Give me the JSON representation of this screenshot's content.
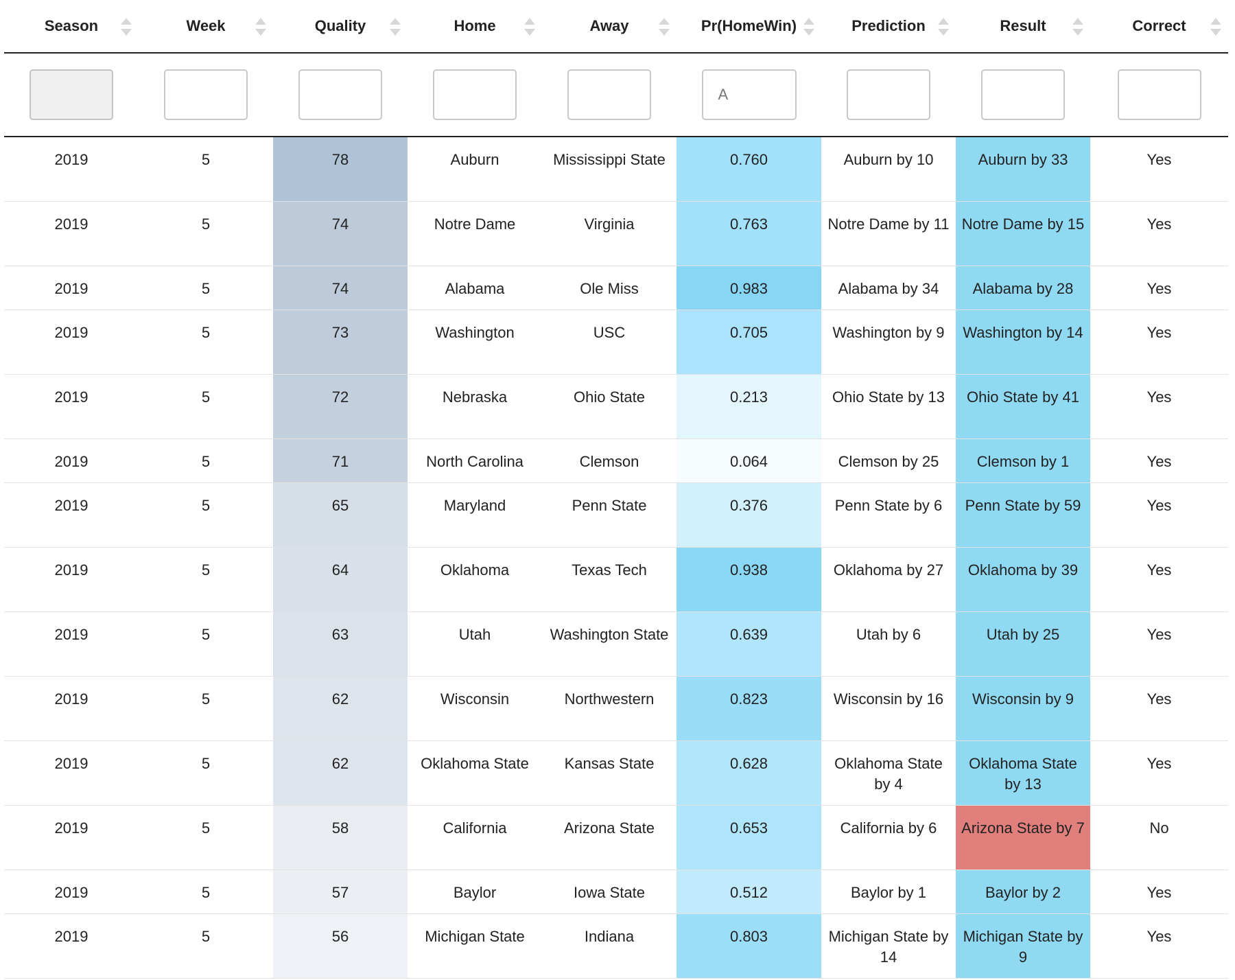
{
  "columns": [
    "Season",
    "Week",
    "Quality",
    "Home",
    "Away",
    "Pr(HomeWin)",
    "Prediction",
    "Result",
    "Correct"
  ],
  "filters": {
    "prob_placeholder": "A"
  },
  "colors": {
    "result_correct": "#8fd9f3",
    "result_wrong": "#e17f7d",
    "header_border": "#222222"
  },
  "rows": [
    {
      "season": "2019",
      "week": "5",
      "quality": "78",
      "home": "Auburn",
      "away": "Mississippi State",
      "prob": "0.760",
      "prediction": "Auburn by 10",
      "result": "Auburn by 33",
      "correct": "Yes",
      "quality_bg": "#b0c2d6",
      "prob_bg": "#a3e1fb",
      "result_bg": "#8fd9f3",
      "tall": true
    },
    {
      "season": "2019",
      "week": "5",
      "quality": "74",
      "home": "Notre Dame",
      "away": "Virginia",
      "prob": "0.763",
      "prediction": "Notre Dame by 11",
      "result": "Notre Dame by 15",
      "correct": "Yes",
      "quality_bg": "#bccada",
      "prob_bg": "#a3e1fb",
      "result_bg": "#8fd9f3",
      "tall": true
    },
    {
      "season": "2019",
      "week": "5",
      "quality": "74",
      "home": "Alabama",
      "away": "Ole Miss",
      "prob": "0.983",
      "prediction": "Alabama by 34",
      "result": "Alabama by 28",
      "correct": "Yes",
      "quality_bg": "#bccada",
      "prob_bg": "#87d6f5",
      "result_bg": "#8fd9f3",
      "tall": false
    },
    {
      "season": "2019",
      "week": "5",
      "quality": "73",
      "home": "Washington",
      "away": "USC",
      "prob": "0.705",
      "prediction": "Washington by 9",
      "result": "Washington by 14",
      "correct": "Yes",
      "quality_bg": "#bfccdc",
      "prob_bg": "#aae3fb",
      "result_bg": "#8fd9f3",
      "tall": true
    },
    {
      "season": "2019",
      "week": "5",
      "quality": "72",
      "home": "Nebraska",
      "away": "Ohio State",
      "prob": "0.213",
      "prediction": "Ohio State by 13",
      "result": "Ohio State by 41",
      "correct": "Yes",
      "quality_bg": "#c2cfdd",
      "prob_bg": "#e4f6fd",
      "result_bg": "#8fd9f3",
      "tall": true
    },
    {
      "season": "2019",
      "week": "5",
      "quality": "71",
      "home": "North Carolina",
      "away": "Clemson",
      "prob": "0.064",
      "prediction": "Clemson by 25",
      "result": "Clemson by 1",
      "correct": "Yes",
      "quality_bg": "#c5d1de",
      "prob_bg": "#f6fcfe",
      "result_bg": "#8fd9f3",
      "tall": false
    },
    {
      "season": "2019",
      "week": "5",
      "quality": "65",
      "home": "Maryland",
      "away": "Penn State",
      "prob": "0.376",
      "prediction": "Penn State by 6",
      "result": "Penn State by 59",
      "correct": "Yes",
      "quality_bg": "#d6dee8",
      "prob_bg": "#d3f1fc",
      "result_bg": "#8fd9f3",
      "tall": true
    },
    {
      "season": "2019",
      "week": "5",
      "quality": "64",
      "home": "Oklahoma",
      "away": "Texas Tech",
      "prob": "0.938",
      "prediction": "Oklahoma by 27",
      "result": "Oklahoma by 39",
      "correct": "Yes",
      "quality_bg": "#d9e0e9",
      "prob_bg": "#8ad8f6",
      "result_bg": "#8fd9f3",
      "tall": true
    },
    {
      "season": "2019",
      "week": "5",
      "quality": "63",
      "home": "Utah",
      "away": "Washington State",
      "prob": "0.639",
      "prediction": "Utah by 6",
      "result": "Utah by 25",
      "correct": "Yes",
      "quality_bg": "#dbe2ea",
      "prob_bg": "#b0e5fb",
      "result_bg": "#8fd9f3",
      "tall": true
    },
    {
      "season": "2019",
      "week": "5",
      "quality": "62",
      "home": "Wisconsin",
      "away": "Northwestern",
      "prob": "0.823",
      "prediction": "Wisconsin by 16",
      "result": "Wisconsin by 9",
      "correct": "Yes",
      "quality_bg": "#dfe5ec",
      "prob_bg": "#99ddf8",
      "result_bg": "#8fd9f3",
      "tall": true
    },
    {
      "season": "2019",
      "week": "5",
      "quality": "62",
      "home": "Oklahoma State",
      "away": "Kansas State",
      "prob": "0.628",
      "prediction": "Oklahoma State by 4",
      "result": "Oklahoma State by 13",
      "correct": "Yes",
      "quality_bg": "#dfe5ec",
      "prob_bg": "#b2e6fb",
      "result_bg": "#8fd9f3",
      "tall": true
    },
    {
      "season": "2019",
      "week": "5",
      "quality": "58",
      "home": "California",
      "away": "Arizona State",
      "prob": "0.653",
      "prediction": "California by 6",
      "result": "Arizona State by 7",
      "correct": "No",
      "quality_bg": "#e9edf2",
      "prob_bg": "#afe5fb",
      "result_bg": "#e17f7d",
      "tall": true
    },
    {
      "season": "2019",
      "week": "5",
      "quality": "57",
      "home": "Baylor",
      "away": "Iowa State",
      "prob": "0.512",
      "prediction": "Baylor by 1",
      "result": "Baylor by 2",
      "correct": "Yes",
      "quality_bg": "#ebeff4",
      "prob_bg": "#c1ebfc",
      "result_bg": "#8fd9f3",
      "tall": false
    },
    {
      "season": "2019",
      "week": "5",
      "quality": "56",
      "home": "Michigan State",
      "away": "Indiana",
      "prob": "0.803",
      "prediction": "Michigan State by 14",
      "result": "Michigan State by 9",
      "correct": "Yes",
      "quality_bg": "#eef1f5",
      "prob_bg": "#9cdef8",
      "result_bg": "#8fd9f3",
      "tall": true
    }
  ]
}
